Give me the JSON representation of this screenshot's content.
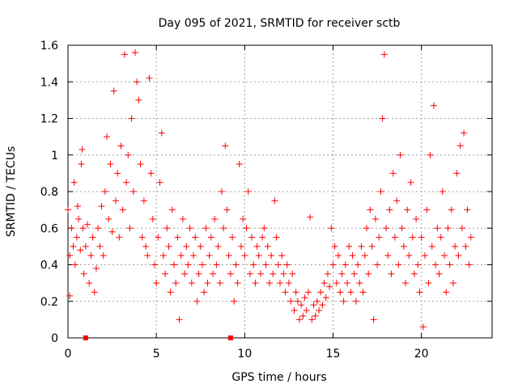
{
  "chart_data": {
    "type": "scatter",
    "title": "Day 095 of 2021, SRMTID for receiver sctb",
    "xlabel": "GPS time / hours",
    "ylabel": "SRMTID / TECUs",
    "xlim": [
      0,
      24
    ],
    "ylim": [
      0,
      1.6
    ],
    "xticks": [
      0,
      5,
      10,
      15,
      20
    ],
    "yticks": [
      0,
      0.2,
      0.4,
      0.6,
      0.8,
      1.0,
      1.2,
      1.4,
      1.6
    ],
    "xtick_labels": [
      "0",
      "5",
      "10",
      "15",
      "20"
    ],
    "ytick_labels": [
      "0",
      "0.2",
      "0.4",
      "0.6",
      "0.8",
      "1",
      "1.2",
      "1.4",
      "1.6"
    ],
    "grid": true,
    "marker": "plus",
    "color": "#ff0000",
    "series": [
      {
        "name": "SRMTID",
        "points": [
          [
            0.0,
            0.7
          ],
          [
            0.1,
            0.45
          ],
          [
            0.1,
            0.23
          ],
          [
            0.2,
            0.6
          ],
          [
            0.3,
            0.5
          ],
          [
            0.35,
            0.85
          ],
          [
            0.4,
            0.4
          ],
          [
            0.5,
            0.55
          ],
          [
            0.55,
            0.72
          ],
          [
            0.6,
            0.65
          ],
          [
            0.7,
            0.48
          ],
          [
            0.75,
            0.95
          ],
          [
            0.8,
            1.03
          ],
          [
            0.85,
            0.6
          ],
          [
            0.9,
            0.35
          ],
          [
            1.0,
            0.5
          ],
          [
            1.1,
            0.62
          ],
          [
            1.2,
            0.3
          ],
          [
            1.3,
            0.45
          ],
          [
            1.4,
            0.55
          ],
          [
            1.5,
            0.25
          ],
          [
            1.6,
            0.38
          ],
          [
            1.7,
            0.6
          ],
          [
            1.8,
            0.5
          ],
          [
            1.9,
            0.72
          ],
          [
            2.0,
            0.45
          ],
          [
            2.1,
            0.8
          ],
          [
            2.2,
            1.1
          ],
          [
            2.3,
            0.65
          ],
          [
            2.4,
            0.95
          ],
          [
            2.5,
            0.58
          ],
          [
            2.6,
            1.35
          ],
          [
            2.7,
            0.75
          ],
          [
            2.8,
            0.9
          ],
          [
            2.9,
            0.55
          ],
          [
            3.0,
            1.05
          ],
          [
            3.1,
            0.7
          ],
          [
            3.2,
            1.55
          ],
          [
            3.3,
            0.85
          ],
          [
            3.4,
            1.0
          ],
          [
            3.5,
            0.6
          ],
          [
            3.6,
            1.2
          ],
          [
            3.7,
            0.8
          ],
          [
            3.8,
            1.56
          ],
          [
            3.9,
            1.4
          ],
          [
            4.0,
            1.3
          ],
          [
            4.1,
            0.95
          ],
          [
            4.2,
            0.55
          ],
          [
            4.3,
            0.75
          ],
          [
            4.4,
            0.5
          ],
          [
            4.5,
            0.45
          ],
          [
            4.6,
            1.42
          ],
          [
            4.7,
            0.9
          ],
          [
            4.8,
            0.65
          ],
          [
            4.9,
            0.4
          ],
          [
            5.0,
            0.3
          ],
          [
            5.1,
            0.55
          ],
          [
            5.2,
            0.85
          ],
          [
            5.3,
            1.12
          ],
          [
            5.4,
            0.45
          ],
          [
            5.5,
            0.35
          ],
          [
            5.6,
            0.6
          ],
          [
            5.7,
            0.5
          ],
          [
            5.8,
            0.25
          ],
          [
            5.9,
            0.7
          ],
          [
            6.0,
            0.4
          ],
          [
            6.1,
            0.3
          ],
          [
            6.2,
            0.55
          ],
          [
            6.3,
            0.1
          ],
          [
            6.4,
            0.45
          ],
          [
            6.5,
            0.65
          ],
          [
            6.6,
            0.35
          ],
          [
            6.7,
            0.5
          ],
          [
            6.8,
            0.4
          ],
          [
            6.9,
            0.6
          ],
          [
            7.0,
            0.3
          ],
          [
            7.1,
            0.45
          ],
          [
            7.2,
            0.55
          ],
          [
            7.3,
            0.2
          ],
          [
            7.4,
            0.35
          ],
          [
            7.5,
            0.5
          ],
          [
            7.6,
            0.4
          ],
          [
            7.7,
            0.25
          ],
          [
            7.8,
            0.6
          ],
          [
            7.9,
            0.3
          ],
          [
            8.0,
            0.45
          ],
          [
            8.1,
            0.55
          ],
          [
            8.2,
            0.35
          ],
          [
            8.3,
            0.65
          ],
          [
            8.4,
            0.4
          ],
          [
            8.5,
            0.5
          ],
          [
            8.6,
            0.3
          ],
          [
            8.7,
            0.8
          ],
          [
            8.8,
            0.6
          ],
          [
            8.9,
            1.05
          ],
          [
            9.0,
            0.7
          ],
          [
            9.1,
            0.45
          ],
          [
            9.2,
            0.35
          ],
          [
            9.3,
            0.55
          ],
          [
            9.4,
            0.2
          ],
          [
            9.5,
            0.4
          ],
          [
            9.6,
            0.3
          ],
          [
            9.7,
            0.95
          ],
          [
            9.8,
            0.5
          ],
          [
            9.9,
            0.65
          ],
          [
            10.0,
            0.45
          ],
          [
            10.1,
            0.6
          ],
          [
            10.2,
            0.8
          ],
          [
            10.3,
            0.35
          ],
          [
            10.4,
            0.55
          ],
          [
            10.5,
            0.4
          ],
          [
            10.6,
            0.3
          ],
          [
            10.7,
            0.5
          ],
          [
            10.8,
            0.45
          ],
          [
            10.9,
            0.35
          ],
          [
            11.0,
            0.55
          ],
          [
            11.1,
            0.6
          ],
          [
            11.2,
            0.4
          ],
          [
            11.3,
            0.5
          ],
          [
            11.4,
            0.3
          ],
          [
            11.5,
            0.45
          ],
          [
            11.6,
            0.35
          ],
          [
            11.7,
            0.75
          ],
          [
            11.8,
            0.55
          ],
          [
            11.9,
            0.4
          ],
          [
            12.0,
            0.3
          ],
          [
            12.1,
            0.45
          ],
          [
            12.2,
            0.35
          ],
          [
            12.3,
            0.25
          ],
          [
            12.4,
            0.4
          ],
          [
            12.5,
            0.3
          ],
          [
            12.6,
            0.2
          ],
          [
            12.7,
            0.35
          ],
          [
            12.8,
            0.15
          ],
          [
            12.9,
            0.25
          ],
          [
            13.0,
            0.2
          ],
          [
            13.1,
            0.1
          ],
          [
            13.2,
            0.18
          ],
          [
            13.3,
            0.12
          ],
          [
            13.4,
            0.22
          ],
          [
            13.5,
            0.15
          ],
          [
            13.6,
            0.25
          ],
          [
            13.7,
            0.66
          ],
          [
            13.8,
            0.1
          ],
          [
            13.9,
            0.18
          ],
          [
            14.0,
            0.12
          ],
          [
            14.1,
            0.2
          ],
          [
            14.2,
            0.15
          ],
          [
            14.3,
            0.25
          ],
          [
            14.4,
            0.18
          ],
          [
            14.5,
            0.3
          ],
          [
            14.6,
            0.22
          ],
          [
            14.7,
            0.35
          ],
          [
            14.8,
            0.28
          ],
          [
            14.9,
            0.6
          ],
          [
            15.0,
            0.4
          ],
          [
            15.1,
            0.5
          ],
          [
            15.2,
            0.3
          ],
          [
            15.3,
            0.45
          ],
          [
            15.4,
            0.25
          ],
          [
            15.5,
            0.35
          ],
          [
            15.6,
            0.2
          ],
          [
            15.7,
            0.4
          ],
          [
            15.8,
            0.3
          ],
          [
            15.9,
            0.5
          ],
          [
            16.0,
            0.25
          ],
          [
            16.1,
            0.45
          ],
          [
            16.2,
            0.35
          ],
          [
            16.3,
            0.2
          ],
          [
            16.4,
            0.4
          ],
          [
            16.5,
            0.3
          ],
          [
            16.6,
            0.5
          ],
          [
            16.7,
            0.25
          ],
          [
            16.8,
            0.45
          ],
          [
            16.9,
            0.6
          ],
          [
            17.0,
            0.35
          ],
          [
            17.1,
            0.7
          ],
          [
            17.2,
            0.5
          ],
          [
            17.3,
            0.1
          ],
          [
            17.4,
            0.65
          ],
          [
            17.5,
            0.4
          ],
          [
            17.6,
            0.55
          ],
          [
            17.7,
            0.8
          ],
          [
            17.8,
            1.2
          ],
          [
            17.9,
            1.55
          ],
          [
            18.0,
            0.6
          ],
          [
            18.1,
            0.45
          ],
          [
            18.2,
            0.7
          ],
          [
            18.3,
            0.35
          ],
          [
            18.4,
            0.9
          ],
          [
            18.5,
            0.55
          ],
          [
            18.6,
            0.75
          ],
          [
            18.7,
            0.4
          ],
          [
            18.8,
            1.0
          ],
          [
            18.9,
            0.6
          ],
          [
            19.0,
            0.5
          ],
          [
            19.1,
            0.3
          ],
          [
            19.2,
            0.7
          ],
          [
            19.3,
            0.45
          ],
          [
            19.4,
            0.85
          ],
          [
            19.5,
            0.55
          ],
          [
            19.6,
            0.35
          ],
          [
            19.7,
            0.65
          ],
          [
            19.8,
            0.4
          ],
          [
            19.9,
            0.25
          ],
          [
            20.0,
            0.55
          ],
          [
            20.1,
            0.06
          ],
          [
            20.2,
            0.45
          ],
          [
            20.3,
            0.7
          ],
          [
            20.4,
            0.3
          ],
          [
            20.5,
            1.0
          ],
          [
            20.6,
            0.5
          ],
          [
            20.7,
            1.27
          ],
          [
            20.8,
            0.4
          ],
          [
            20.9,
            0.6
          ],
          [
            21.0,
            0.35
          ],
          [
            21.1,
            0.55
          ],
          [
            21.2,
            0.8
          ],
          [
            21.3,
            0.45
          ],
          [
            21.4,
            0.25
          ],
          [
            21.5,
            0.6
          ],
          [
            21.6,
            0.4
          ],
          [
            21.7,
            0.7
          ],
          [
            21.8,
            0.3
          ],
          [
            21.9,
            0.5
          ],
          [
            22.0,
            0.9
          ],
          [
            22.1,
            0.45
          ],
          [
            22.2,
            1.05
          ],
          [
            22.3,
            0.6
          ],
          [
            22.4,
            1.12
          ],
          [
            22.5,
            0.5
          ],
          [
            22.6,
            0.7
          ],
          [
            22.7,
            0.4
          ],
          [
            22.8,
            0.55
          ]
        ]
      }
    ],
    "annotations": [
      {
        "type": "tick-marker",
        "x": 1.0,
        "y": 0
      },
      {
        "type": "tick-marker",
        "x": 9.2,
        "y": 0
      }
    ]
  }
}
